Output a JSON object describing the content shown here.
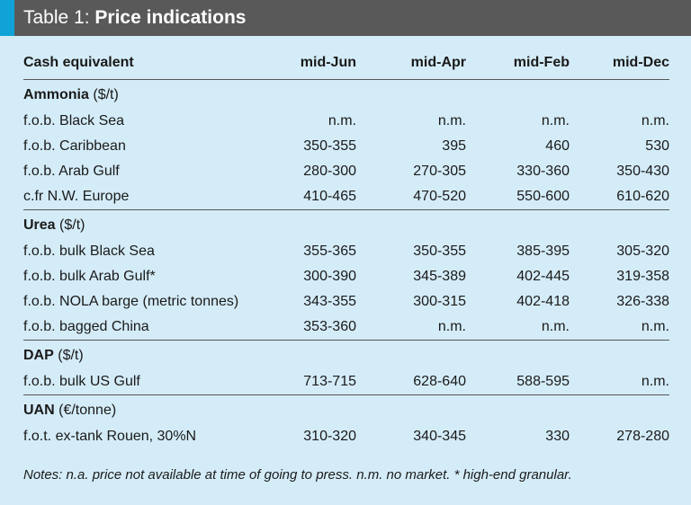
{
  "title": {
    "prefix": "Table 1:",
    "name": "Price indications"
  },
  "columns": [
    "Cash equivalent",
    "mid-Jun",
    "mid-Apr",
    "mid-Feb",
    "mid-Dec"
  ],
  "sections": [
    {
      "name": "Ammonia",
      "unit": "($/t)",
      "rows": [
        {
          "label": "f.o.b. Black Sea",
          "values": [
            "n.m.",
            "n.m.",
            "n.m.",
            "n.m."
          ]
        },
        {
          "label": "f.o.b. Caribbean",
          "values": [
            "350-355",
            "395",
            "460",
            "530"
          ]
        },
        {
          "label": "f.o.b. Arab Gulf",
          "values": [
            "280-300",
            "270-305",
            "330-360",
            "350-430"
          ]
        },
        {
          "label": "c.fr N.W. Europe",
          "values": [
            "410-465",
            "470-520",
            "550-600",
            "610-620"
          ]
        }
      ]
    },
    {
      "name": "Urea",
      "unit": "($/t)",
      "rows": [
        {
          "label": "f.o.b. bulk Black Sea",
          "values": [
            "355-365",
            "350-355",
            "385-395",
            "305-320"
          ]
        },
        {
          "label": "f.o.b. bulk Arab Gulf*",
          "values": [
            "300-390",
            "345-389",
            "402-445",
            "319-358"
          ]
        },
        {
          "label": "f.o.b. NOLA barge (metric tonnes)",
          "values": [
            "343-355",
            "300-315",
            "402-418",
            "326-338"
          ]
        },
        {
          "label": "f.o.b. bagged China",
          "values": [
            "353-360",
            "n.m.",
            "n.m.",
            "n.m."
          ]
        }
      ]
    },
    {
      "name": "DAP",
      "unit": "($/t)",
      "rows": [
        {
          "label": "f.o.b. bulk US Gulf",
          "values": [
            "713-715",
            "628-640",
            "588-595",
            "n.m."
          ]
        }
      ]
    },
    {
      "name": "UAN",
      "unit": "(€/tonne)",
      "rows": [
        {
          "label": "f.o.t. ex-tank Rouen, 30%N",
          "values": [
            "310-320",
            "340-345",
            "330",
            "278-280"
          ]
        }
      ]
    }
  ],
  "notes": "Notes: n.a. price not available at time of going to press.   n.m. no market.   * high-end granular.",
  "colors": {
    "title_bar": "#595959",
    "accent": "#0fa3d8",
    "background": "#d4ecf8"
  }
}
